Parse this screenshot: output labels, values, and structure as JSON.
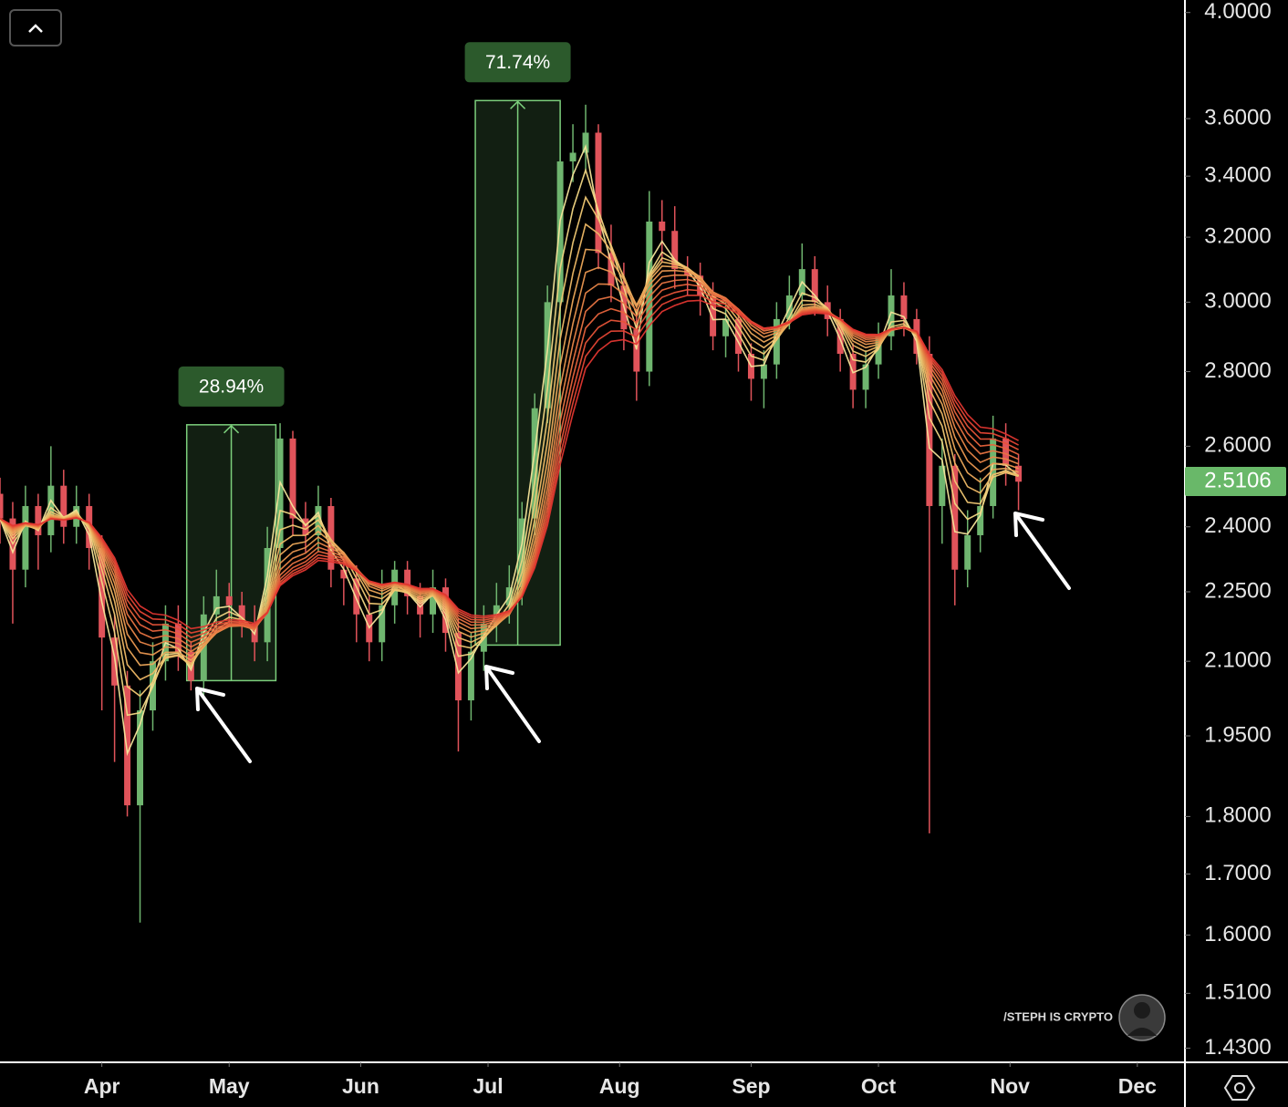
{
  "chart_data": {
    "type": "candlestick",
    "log_scale": true,
    "x": [
      -24,
      -21,
      -18,
      -15,
      -12,
      -9,
      -6,
      -3,
      0,
      3,
      6,
      9,
      12,
      15,
      18,
      21,
      24,
      27,
      30,
      33,
      36,
      39,
      42,
      45,
      48,
      51,
      54,
      57,
      60,
      63,
      66,
      69,
      72,
      75,
      78,
      81,
      84,
      87,
      90,
      93,
      96,
      99,
      102,
      105,
      108,
      111,
      114,
      117,
      120,
      123,
      126,
      129,
      132,
      135,
      138,
      141,
      144,
      147,
      150,
      153,
      156,
      159,
      162,
      165,
      168,
      171,
      174,
      177,
      180,
      183,
      186,
      189,
      192,
      195,
      198,
      201,
      204,
      207,
      210,
      213,
      216
    ],
    "open": [
      2.48,
      2.42,
      2.3,
      2.45,
      2.38,
      2.5,
      2.4,
      2.45,
      2.35,
      2.15,
      2.05,
      1.82,
      2.0,
      2.1,
      2.18,
      2.12,
      2.06,
      2.2,
      2.24,
      2.22,
      2.18,
      2.14,
      2.35,
      2.62,
      2.42,
      2.38,
      2.45,
      2.3,
      2.28,
      2.2,
      2.14,
      2.22,
      2.3,
      2.24,
      2.2,
      2.26,
      2.16,
      2.02,
      2.12,
      2.18,
      2.22,
      2.26,
      2.42,
      2.7,
      3.0,
      3.45,
      3.48,
      3.55,
      3.15,
      3.05,
      2.92,
      2.8,
      3.25,
      3.22,
      3.1,
      3.08,
      3.02,
      2.9,
      2.95,
      2.85,
      2.78,
      2.82,
      2.95,
      3.02,
      3.1,
      3.0,
      2.95,
      2.85,
      2.75,
      2.82,
      2.9,
      3.02,
      2.95,
      2.85,
      2.45,
      2.55,
      2.3,
      2.38,
      2.45,
      2.62,
      2.55
    ],
    "high": [
      2.52,
      2.46,
      2.5,
      2.48,
      2.6,
      2.54,
      2.5,
      2.48,
      2.38,
      2.2,
      2.08,
      2.04,
      2.14,
      2.22,
      2.22,
      2.14,
      2.24,
      2.3,
      2.27,
      2.25,
      2.22,
      2.4,
      2.66,
      2.64,
      2.46,
      2.5,
      2.47,
      2.33,
      2.31,
      2.24,
      2.3,
      2.32,
      2.32,
      2.27,
      2.3,
      2.28,
      2.19,
      2.16,
      2.22,
      2.27,
      2.31,
      2.46,
      2.74,
      3.05,
      3.5,
      3.58,
      3.65,
      3.58,
      3.24,
      3.12,
      2.98,
      3.35,
      3.32,
      3.3,
      3.14,
      3.12,
      3.06,
      3.0,
      2.98,
      2.88,
      2.86,
      3.0,
      3.08,
      3.18,
      3.14,
      3.05,
      2.98,
      2.88,
      2.86,
      2.94,
      3.1,
      3.06,
      2.98,
      2.9,
      2.62,
      2.58,
      2.44,
      2.52,
      2.68,
      2.66,
      2.58
    ],
    "low": [
      2.36,
      2.18,
      2.26,
      2.3,
      2.34,
      2.36,
      2.36,
      2.3,
      2.0,
      1.9,
      1.8,
      1.62,
      1.96,
      2.06,
      2.08,
      2.04,
      2.03,
      2.16,
      2.18,
      2.15,
      2.1,
      2.1,
      2.3,
      2.38,
      2.34,
      2.34,
      2.26,
      2.22,
      2.14,
      2.1,
      2.1,
      2.18,
      2.2,
      2.15,
      2.16,
      2.12,
      1.92,
      1.98,
      2.08,
      2.14,
      2.18,
      2.22,
      2.38,
      2.66,
      2.96,
      3.38,
      3.42,
      3.1,
      3.0,
      2.86,
      2.72,
      2.76,
      3.12,
      3.04,
      3.02,
      2.96,
      2.86,
      2.84,
      2.8,
      2.72,
      2.7,
      2.78,
      2.92,
      2.98,
      2.96,
      2.9,
      2.8,
      2.7,
      2.7,
      2.78,
      2.86,
      2.9,
      2.82,
      1.77,
      2.36,
      2.22,
      2.26,
      2.34,
      2.42,
      2.5,
      2.44
    ],
    "close": [
      2.42,
      2.3,
      2.45,
      2.38,
      2.5,
      2.4,
      2.45,
      2.35,
      2.15,
      2.05,
      1.82,
      2.0,
      2.1,
      2.18,
      2.12,
      2.06,
      2.2,
      2.24,
      2.22,
      2.18,
      2.14,
      2.35,
      2.62,
      2.42,
      2.38,
      2.45,
      2.3,
      2.28,
      2.2,
      2.14,
      2.22,
      2.3,
      2.24,
      2.2,
      2.26,
      2.16,
      2.02,
      2.12,
      2.18,
      2.22,
      2.26,
      2.42,
      2.7,
      3.0,
      3.45,
      3.48,
      3.55,
      3.15,
      3.05,
      2.92,
      2.8,
      3.25,
      3.22,
      3.1,
      3.08,
      3.02,
      2.9,
      2.95,
      2.85,
      2.78,
      2.82,
      2.95,
      3.02,
      3.1,
      3.0,
      2.95,
      2.85,
      2.75,
      2.82,
      2.9,
      3.02,
      2.95,
      2.85,
      2.45,
      2.55,
      2.3,
      2.38,
      2.45,
      2.62,
      2.55,
      2.51
    ],
    "up_color": "#6fb56f",
    "down_color": "#e0535a",
    "ribbon": {
      "periods": [
        2,
        3,
        4,
        5,
        6,
        7,
        8,
        9,
        10,
        11,
        12,
        13
      ],
      "colors": [
        "#f4e49a",
        "#f2d784",
        "#f0c873",
        "#eeb865",
        "#eca85a",
        "#ea9750",
        "#e98648",
        "#e87442",
        "#e7633c",
        "#e65338",
        "#e44434",
        "#e03630"
      ]
    },
    "xlim": [
      -24,
      255
    ],
    "ylim": [
      1.41,
      4.05
    ],
    "xticks": [
      {
        "value": 0,
        "label": "Apr"
      },
      {
        "value": 30,
        "label": "May"
      },
      {
        "value": 61,
        "label": "Jun"
      },
      {
        "value": 91,
        "label": "Jul"
      },
      {
        "value": 122,
        "label": "Aug"
      },
      {
        "value": 153,
        "label": "Sep"
      },
      {
        "value": 183,
        "label": "Oct"
      },
      {
        "value": 214,
        "label": "Nov"
      },
      {
        "value": 244,
        "label": "Dec"
      }
    ],
    "yticks": [
      {
        "value": 4,
        "label": "4.0000"
      },
      {
        "value": 3.6,
        "label": "3.6000"
      },
      {
        "value": 3.4,
        "label": "3.4000"
      },
      {
        "value": 3.2,
        "label": "3.2000"
      },
      {
        "value": 3,
        "label": "3.0000"
      },
      {
        "value": 2.8,
        "label": "2.8000"
      },
      {
        "value": 2.6,
        "label": "2.6000"
      },
      {
        "value": 2.4,
        "label": "2.4000"
      },
      {
        "value": 2.25,
        "label": "2.2500"
      },
      {
        "value": 2.1,
        "label": "2.1000"
      },
      {
        "value": 1.95,
        "label": "1.9500"
      },
      {
        "value": 1.8,
        "label": "1.8000"
      },
      {
        "value": 1.7,
        "label": "1.7000"
      },
      {
        "value": 1.6,
        "label": "1.6000"
      },
      {
        "value": 1.51,
        "label": "1.5100"
      },
      {
        "value": 1.43,
        "label": "1.4300"
      }
    ],
    "last_price": {
      "value": 2.5106,
      "label": "2.5106"
    },
    "measures": [
      {
        "x": [
          20,
          41
        ],
        "y": [
          2.06,
          2.656
        ],
        "label": "28.94%"
      },
      {
        "x": [
          88,
          108
        ],
        "y": [
          2.134,
          3.665
        ],
        "label": "71.74%"
      }
    ],
    "watermark": "/STEPH IS CRYPTO"
  }
}
